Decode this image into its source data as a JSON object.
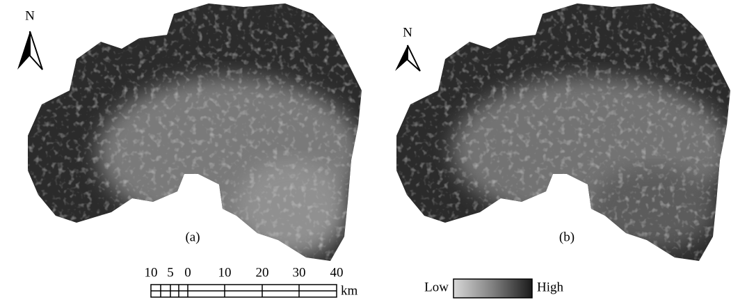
{
  "maps": [
    {
      "north": "N",
      "caption": "(a)"
    },
    {
      "north": "N",
      "caption": "(b)"
    }
  ],
  "scale_bar": {
    "labels": [
      "10",
      "5",
      "0",
      "10",
      "20",
      "30",
      "40"
    ],
    "unit": "km"
  },
  "legend": {
    "low": "Low",
    "high": "High"
  }
}
